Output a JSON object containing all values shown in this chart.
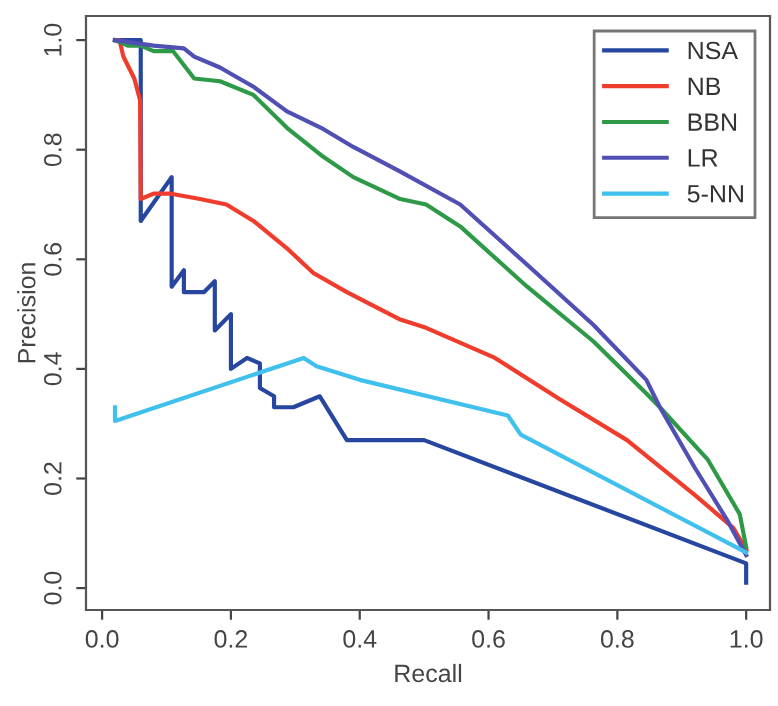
{
  "chart_data": {
    "type": "line",
    "xlabel": "Recall",
    "ylabel": "Precision",
    "xlim": [
      -0.025,
      1.037
    ],
    "ylim": [
      -0.04,
      1.044
    ],
    "xticks": [
      {
        "value": 0,
        "label": "0.0"
      },
      {
        "value": 0.2,
        "label": "0.2"
      },
      {
        "value": 0.4,
        "label": "0.4"
      },
      {
        "value": 0.6,
        "label": "0.6"
      },
      {
        "value": 0.8,
        "label": "0.8"
      },
      {
        "value": 1,
        "label": "1.0"
      }
    ],
    "yticks": [
      {
        "value": 0,
        "label": "0.0"
      },
      {
        "value": 0.2,
        "label": "0.2"
      },
      {
        "value": 0.4,
        "label": "0.4"
      },
      {
        "value": 0.6,
        "label": "0.6"
      },
      {
        "value": 0.8,
        "label": "0.8"
      },
      {
        "value": 1,
        "label": "1.0"
      }
    ],
    "grid": false,
    "legend": "top right",
    "marker": "none",
    "line_style": "solid",
    "series": [
      {
        "name": "NSA",
        "color": "#2646a0",
        "x": [
          0.02,
          0.06,
          0.06,
          0.108,
          0.108,
          0.127,
          0.127,
          0.158,
          0.175,
          0.175,
          0.2,
          0.2,
          0.225,
          0.245,
          0.245,
          0.267,
          0.267,
          0.297,
          0.338,
          0.38,
          0.5,
          1.0,
          1.0
        ],
        "values": [
          1.0,
          1.0,
          0.67,
          0.75,
          0.55,
          0.58,
          0.54,
          0.54,
          0.56,
          0.47,
          0.5,
          0.4,
          0.42,
          0.41,
          0.365,
          0.35,
          0.33,
          0.33,
          0.35,
          0.27,
          0.27,
          0.045,
          0.01
        ]
      },
      {
        "name": "NB",
        "color": "#f03c2c",
        "x": [
          0.02,
          0.027,
          0.033,
          0.05,
          0.059,
          0.06,
          0.08,
          0.105,
          0.152,
          0.193,
          0.235,
          0.287,
          0.328,
          0.38,
          0.463,
          0.503,
          0.61,
          0.71,
          0.815,
          0.92,
          0.98,
          1.0
        ],
        "values": [
          1.0,
          1.0,
          0.97,
          0.93,
          0.89,
          0.71,
          0.72,
          0.72,
          0.71,
          0.7,
          0.67,
          0.62,
          0.575,
          0.54,
          0.49,
          0.475,
          0.42,
          0.345,
          0.27,
          0.17,
          0.11,
          0.07
        ]
      },
      {
        "name": "BBN",
        "color": "#2e9a48",
        "x": [
          0.02,
          0.04,
          0.06,
          0.08,
          0.11,
          0.143,
          0.183,
          0.235,
          0.287,
          0.34,
          0.39,
          0.463,
          0.503,
          0.556,
          0.66,
          0.763,
          0.845,
          0.866,
          0.94,
          0.99,
          1.0
        ],
        "values": [
          1.0,
          0.99,
          0.99,
          0.98,
          0.98,
          0.93,
          0.925,
          0.9,
          0.84,
          0.79,
          0.75,
          0.71,
          0.7,
          0.66,
          0.55,
          0.45,
          0.355,
          0.33,
          0.235,
          0.135,
          0.075
        ]
      },
      {
        "name": "LR",
        "color": "#5050b4",
        "x": [
          0.02,
          0.08,
          0.127,
          0.143,
          0.183,
          0.235,
          0.287,
          0.34,
          0.39,
          0.463,
          0.556,
          0.66,
          0.763,
          0.845,
          0.866,
          0.92,
          0.97,
          1.0
        ],
        "values": [
          1.0,
          0.99,
          0.985,
          0.97,
          0.95,
          0.915,
          0.87,
          0.84,
          0.805,
          0.76,
          0.7,
          0.59,
          0.48,
          0.38,
          0.33,
          0.22,
          0.125,
          0.06
        ]
      },
      {
        "name": "5-NN",
        "color": "#40c0ec",
        "x": [
          0.02,
          0.02,
          0.313,
          0.333,
          0.4,
          0.63,
          0.65,
          1.0
        ],
        "values": [
          0.33,
          0.305,
          0.42,
          0.405,
          0.38,
          0.315,
          0.28,
          0.065
        ]
      }
    ]
  }
}
